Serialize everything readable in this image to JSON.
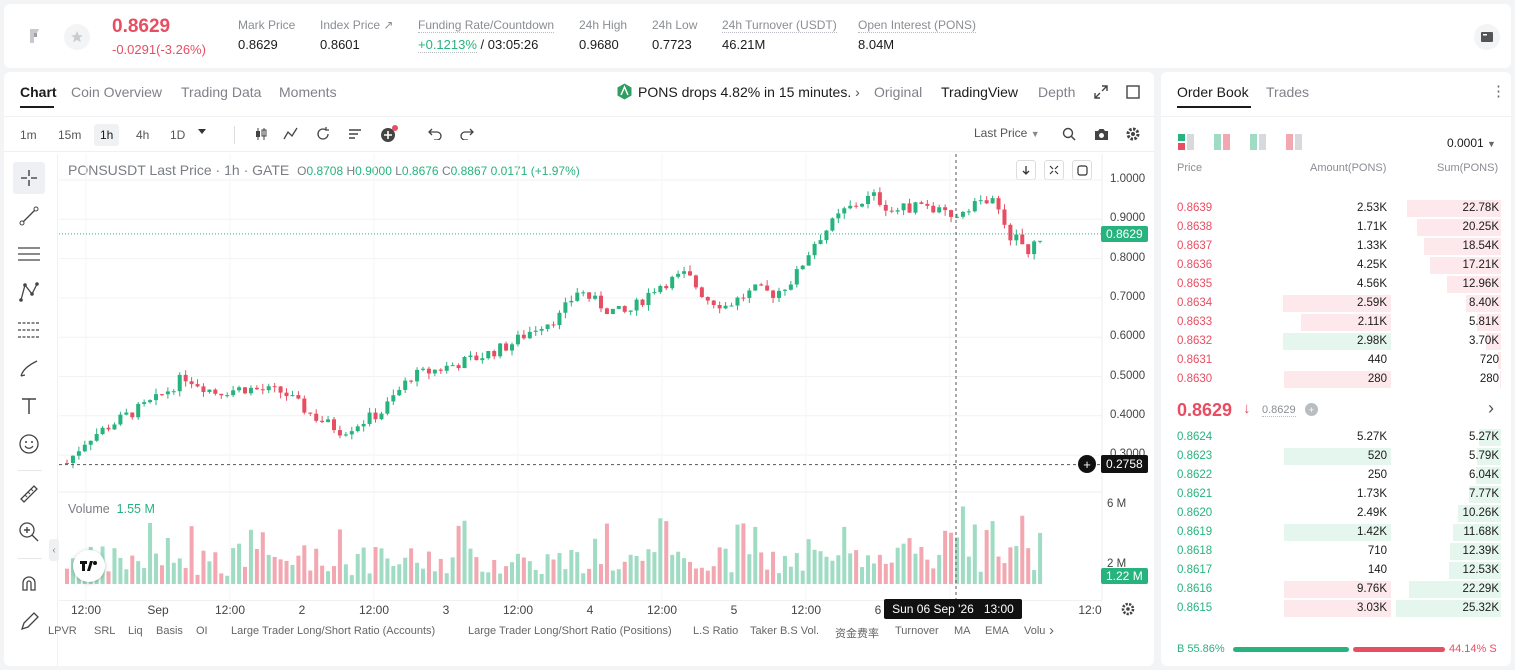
{
  "header": {
    "price": "0.8629",
    "change": "-0.0291(-3.26%)",
    "stats": [
      {
        "label": "Mark Price",
        "value": "0.8629"
      },
      {
        "label": "Index Price ↗",
        "value": "0.8601"
      },
      {
        "label": "Funding Rate/Countdown",
        "value_rate": "+0.1213%",
        "value_count": "/ 03:05:26"
      },
      {
        "label": "24h High",
        "value": "0.9680"
      },
      {
        "label": "24h Low",
        "value": "0.7723"
      },
      {
        "label": "24h Turnover (USDT)",
        "value": "46.21M"
      },
      {
        "label": "Open Interest (PONS)",
        "value": "8.04M"
      }
    ]
  },
  "chart_tabs": [
    "Chart",
    "Coin Overview",
    "Trading Data",
    "Moments"
  ],
  "alert": "PONS drops 4.82% in 15 minutes.",
  "view_tabs": [
    "Original",
    "TradingView",
    "Depth"
  ],
  "timeframes": [
    "1m",
    "15m",
    "1h",
    "4h",
    "1D"
  ],
  "price_type": "Last Price",
  "legend": {
    "symbol": "PONSUSDT Last Price · 1h · GATE",
    "o_label": "O",
    "o": "0.8708",
    "h_label": "H",
    "h": "0.9000",
    "l_label": "L",
    "l": "0.8676",
    "c_label": "C",
    "c": "0.8867",
    "chg": "0.0171",
    "chg_pct": "(+1.97%)"
  },
  "y_axis": [
    "1.0000",
    "0.9000",
    "0.8000",
    "0.7000",
    "0.6000",
    "0.5000",
    "0.4000",
    "0.3000"
  ],
  "last_price_tag": "0.8629",
  "crosshair_price": "0.2758",
  "volume_label": "Volume",
  "volume_value": "1.55 M",
  "vol_axis": [
    "6 M",
    "2 M"
  ],
  "vol_tag": "1.22 M",
  "x_axis": [
    "12:00",
    "Sep",
    "12:00",
    "2",
    "12:00",
    "3",
    "12:00",
    "4",
    "12:00",
    "5",
    "12:00",
    "6",
    "12:0"
  ],
  "crosshair_time": "Sun 06 Sep '26   13:00",
  "indicators": [
    "LPVR",
    "SRL",
    "Liq",
    "Basis",
    "OI",
    "Large Trader Long/Short Ratio (Accounts)",
    "Large Trader Long/Short Ratio (Positions)",
    "L.S Ratio",
    "Taker B.S Vol.",
    "资金费率",
    "Turnover",
    "MA",
    "EMA",
    "Volu"
  ],
  "orderbook": {
    "tabs": [
      "Order Book",
      "Trades"
    ],
    "precision": "0.0001",
    "cols": [
      "Price",
      "Amount(PONS)",
      "Sum(PONS)"
    ],
    "asks": [
      {
        "p": "0.8639",
        "a": "2.53K",
        "s": "22.78K",
        "sumf": 0.899,
        "amtf": 0
      },
      {
        "p": "0.8638",
        "a": "1.71K",
        "s": "20.25K",
        "sumf": 0.8,
        "amtf": 0
      },
      {
        "p": "0.8637",
        "a": "1.33K",
        "s": "18.54K",
        "sumf": 0.732,
        "amtf": 0
      },
      {
        "p": "0.8636",
        "a": "4.25K",
        "s": "17.21K",
        "sumf": 0.68,
        "amtf": 0
      },
      {
        "p": "0.8635",
        "a": "4.56K",
        "s": "12.96K",
        "sumf": 0.512,
        "amtf": 0
      },
      {
        "p": "0.8634",
        "a": "2.59K",
        "s": "8.40K",
        "sumf": 0.332,
        "amtf": 0.44
      },
      {
        "p": "0.8633",
        "a": "2.11K",
        "s": "5.81K",
        "sumf": 0.229,
        "amtf": 0.36
      },
      {
        "p": "0.8632",
        "a": "2.98K",
        "s": "3.70K",
        "sumf": 0.146,
        "amtf": 0.51,
        "green": true
      },
      {
        "p": "0.8631",
        "a": "440",
        "s": "720",
        "sumf": 0.028,
        "amtf": 0
      },
      {
        "p": "0.8630",
        "a": "280",
        "s": "280",
        "sumf": 0.011,
        "amtf": 0.43
      }
    ],
    "mid": "0.8629",
    "mid_mark": "0.8629",
    "bids": [
      {
        "p": "0.8624",
        "a": "5.27K",
        "s": "5.27K",
        "sumf": 0.208,
        "amtf": 0
      },
      {
        "p": "0.8623",
        "a": "520",
        "s": "5.79K",
        "sumf": 0.229,
        "amtf": 0.43
      },
      {
        "p": "0.8622",
        "a": "250",
        "s": "6.04K",
        "sumf": 0.238,
        "amtf": 0
      },
      {
        "p": "0.8621",
        "a": "1.73K",
        "s": "7.77K",
        "sumf": 0.307,
        "amtf": 0
      },
      {
        "p": "0.8620",
        "a": "2.49K",
        "s": "10.26K",
        "sumf": 0.405,
        "amtf": 0
      },
      {
        "p": "0.8619",
        "a": "1.42K",
        "s": "11.68K",
        "sumf": 0.461,
        "amtf": 0.43
      },
      {
        "p": "0.8618",
        "a": "710",
        "s": "12.39K",
        "sumf": 0.489,
        "amtf": 0
      },
      {
        "p": "0.8617",
        "a": "140",
        "s": "12.53K",
        "sumf": 0.495,
        "amtf": 0
      },
      {
        "p": "0.8616",
        "a": "9.76K",
        "s": "22.29K",
        "sumf": 0.88,
        "amtf": 0.43,
        "red": true
      },
      {
        "p": "0.8615",
        "a": "3.03K",
        "s": "25.32K",
        "sumf": 1.0,
        "amtf": 0.43,
        "red": true
      }
    ],
    "buy_pct": "B 55.86%",
    "sell_pct": "44.14% S",
    "buy_frac": 0.5586
  },
  "colors": {
    "up": "#27b37e",
    "down": "#e84e62",
    "up_vol": "#9fdcc3",
    "down_vol": "#f2a7b1"
  }
}
